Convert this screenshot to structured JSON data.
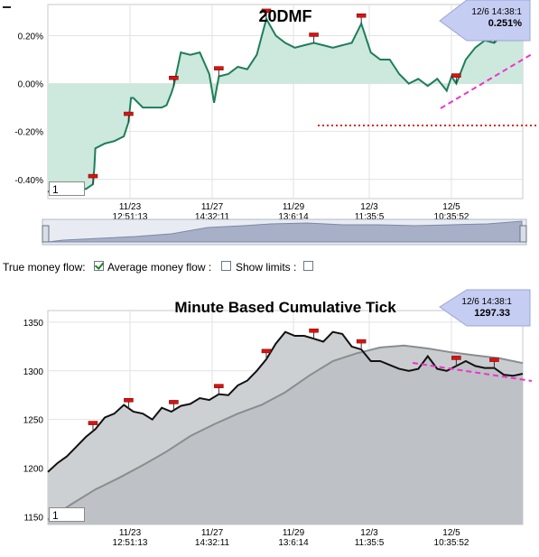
{
  "chart_data": [
    {
      "type": "line",
      "title": "20DMF",
      "y_tick_labels": [
        "0.20%",
        "0.00%",
        "-0.20%",
        "-0.40%"
      ],
      "y_ticks": [
        0.2,
        0.0,
        -0.2,
        -0.4
      ],
      "ylim": [
        -0.48,
        0.33
      ],
      "x_tick_labels": [
        {
          "date": "11/23",
          "time": "12:51:13"
        },
        {
          "date": "11/27",
          "time": "14:32:11"
        },
        {
          "date": "11/29",
          "time": "13:6:14"
        },
        {
          "date": "12/3",
          "time": "11:35:5"
        },
        {
          "date": "12/5",
          "time": "10:35:52"
        }
      ],
      "tooltip": {
        "datetime": "12/6 14:38:1",
        "value": "0.251%"
      },
      "input_value": "1",
      "series": [
        {
          "x": [
            0.0,
            0.02,
            0.04,
            0.06,
            0.08,
            0.095,
            0.098,
            0.1,
            0.12,
            0.14,
            0.16,
            0.17,
            0.175,
            0.18,
            0.2,
            0.22,
            0.24,
            0.25,
            0.26,
            0.265,
            0.28,
            0.3,
            0.32,
            0.34,
            0.35,
            0.36,
            0.38,
            0.4,
            0.42,
            0.44,
            0.46,
            0.48,
            0.5,
            0.52,
            0.54,
            0.56,
            0.58,
            0.6,
            0.62,
            0.64,
            0.66,
            0.68,
            0.7,
            0.72,
            0.74,
            0.76,
            0.78,
            0.8,
            0.82,
            0.84,
            0.85,
            0.86,
            0.88,
            0.9,
            0.92,
            0.94,
            0.96,
            0.98,
            1.0
          ],
          "values": [
            -0.45,
            -0.46,
            -0.44,
            -0.43,
            -0.44,
            -0.42,
            -0.35,
            -0.27,
            -0.25,
            -0.24,
            -0.22,
            -0.16,
            -0.06,
            -0.06,
            -0.1,
            -0.1,
            -0.1,
            -0.09,
            -0.04,
            -0.01,
            0.13,
            0.12,
            0.13,
            0.04,
            -0.08,
            0.03,
            0.04,
            0.07,
            0.06,
            0.12,
            0.27,
            0.2,
            0.17,
            0.15,
            0.16,
            0.17,
            0.16,
            0.15,
            0.16,
            0.17,
            0.25,
            0.13,
            0.1,
            0.1,
            0.04,
            0.0,
            0.02,
            -0.01,
            0.02,
            -0.03,
            0.03,
            0.0,
            0.1,
            0.15,
            0.18,
            0.17,
            0.21,
            0.22,
            0.251
          ]
        }
      ],
      "marker_x": [
        0.095,
        0.17,
        0.265,
        0.36,
        0.46,
        0.56,
        0.66,
        0.86,
        0.94
      ],
      "legend_controls": {
        "true_money_flow": "True money flow:",
        "average_money_flow": "Average money flow :",
        "show_limits": "Show limits :"
      }
    },
    {
      "type": "area",
      "title": "Minute Based Cumulative Tick",
      "y_tick_labels": [
        "1350",
        "1300",
        "1250",
        "1200",
        "1150"
      ],
      "y_ticks": [
        1350,
        1300,
        1250,
        1200,
        1150
      ],
      "ylim": [
        1142,
        1362
      ],
      "x_tick_labels": [
        {
          "date": "11/23",
          "time": "12:51:13"
        },
        {
          "date": "11/27",
          "time": "14:32:11"
        },
        {
          "date": "11/29",
          "time": "13:6:14"
        },
        {
          "date": "12/3",
          "time": "11:35:5"
        },
        {
          "date": "12/5",
          "time": "10:35:52"
        }
      ],
      "tooltip": {
        "datetime": "12/6 14:38:1",
        "value": "1297.33"
      },
      "input_value": "1",
      "series": [
        {
          "style": "black",
          "x": [
            0.0,
            0.02,
            0.04,
            0.06,
            0.08,
            0.1,
            0.12,
            0.14,
            0.16,
            0.18,
            0.2,
            0.22,
            0.24,
            0.26,
            0.28,
            0.3,
            0.32,
            0.34,
            0.36,
            0.38,
            0.4,
            0.42,
            0.44,
            0.46,
            0.48,
            0.5,
            0.52,
            0.54,
            0.56,
            0.58,
            0.6,
            0.62,
            0.64,
            0.66,
            0.68,
            0.7,
            0.72,
            0.74,
            0.76,
            0.78,
            0.8,
            0.82,
            0.84,
            0.86,
            0.88,
            0.9,
            0.92,
            0.94,
            0.96,
            0.98,
            1.0
          ],
          "values": [
            1196,
            1205,
            1212,
            1222,
            1232,
            1240,
            1252,
            1256,
            1265,
            1258,
            1256,
            1250,
            1262,
            1258,
            1264,
            1266,
            1272,
            1270,
            1276,
            1275,
            1285,
            1290,
            1300,
            1312,
            1328,
            1340,
            1336,
            1336,
            1333,
            1330,
            1340,
            1338,
            1325,
            1322,
            1310,
            1310,
            1306,
            1302,
            1300,
            1302,
            1315,
            1302,
            1300,
            1305,
            1310,
            1305,
            1303,
            1303,
            1296,
            1295,
            1297
          ]
        },
        {
          "style": "gray",
          "x": [
            0.0,
            0.05,
            0.1,
            0.15,
            0.2,
            0.25,
            0.3,
            0.35,
            0.4,
            0.45,
            0.5,
            0.55,
            0.6,
            0.65,
            0.7,
            0.75,
            0.8,
            0.85,
            0.9,
            0.95,
            1.0
          ],
          "values": [
            1147,
            1163,
            1178,
            1190,
            1203,
            1217,
            1233,
            1245,
            1256,
            1265,
            1278,
            1295,
            1310,
            1318,
            1324,
            1326,
            1323,
            1319,
            1316,
            1313,
            1308
          ]
        }
      ],
      "marker_x": [
        0.095,
        0.17,
        0.265,
        0.36,
        0.46,
        0.56,
        0.66,
        0.86,
        0.94
      ]
    }
  ],
  "ui": {
    "scrollbar": "scrollbar-range-selector",
    "colors": {
      "flow_line": "#1e7e5b",
      "flow_fill": "#cde8dc",
      "trend": "#ee33cc",
      "limit": "#dd2222",
      "tooltip": "#c8d0f0"
    }
  }
}
